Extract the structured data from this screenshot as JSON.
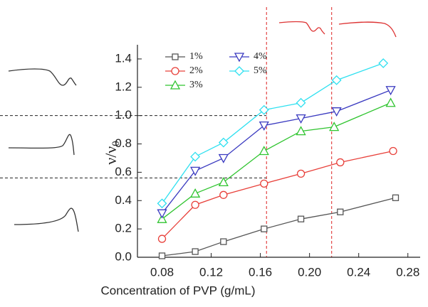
{
  "chart_data": {
    "type": "line",
    "xlabel": "Concentration of PVP (g/mL)",
    "ylabel": "ν/ν",
    "ylabel_sub": "0",
    "xlim": [
      0.06,
      0.29
    ],
    "ylim": [
      0,
      1.5
    ],
    "xticks": [
      0.08,
      0.12,
      0.16,
      {
        "value": 0.2,
        "label": "0.20"
      },
      0.24,
      0.28
    ],
    "yticks": [
      {
        "value": 0,
        "label": "0.0"
      },
      0.2,
      0.4,
      0.6,
      0.8,
      {
        "value": 1,
        "label": "1.0"
      },
      1.2,
      1.4
    ],
    "vlines": [
      0.165,
      0.218
    ],
    "hlines": [
      1.0,
      0.56
    ],
    "series": [
      {
        "name": "1%",
        "color": "#555555",
        "marker": "square",
        "x": [
          0.08,
          0.107,
          0.13,
          0.163,
          0.193,
          0.225,
          0.27
        ],
        "values": [
          0.01,
          0.04,
          0.11,
          0.2,
          0.27,
          0.32,
          0.42
        ]
      },
      {
        "name": "2%",
        "color": "#e8403a",
        "marker": "circle",
        "x": [
          0.08,
          0.107,
          0.13,
          0.163,
          0.193,
          0.225,
          0.268
        ],
        "values": [
          0.13,
          0.37,
          0.44,
          0.52,
          0.59,
          0.67,
          0.75
        ]
      },
      {
        "name": "3%",
        "color": "#2fc42f",
        "marker": "triangle",
        "x": [
          0.08,
          0.107,
          0.13,
          0.163,
          0.193,
          0.22,
          0.266
        ],
        "values": [
          0.27,
          0.45,
          0.53,
          0.75,
          0.89,
          0.92,
          1.09
        ]
      },
      {
        "name": "4%",
        "color": "#3a3ac0",
        "marker": "down-triangle",
        "x": [
          0.08,
          0.107,
          0.13,
          0.163,
          0.193,
          0.222,
          0.266
        ],
        "values": [
          0.31,
          0.61,
          0.7,
          0.93,
          0.98,
          1.03,
          1.18
        ]
      },
      {
        "name": "5%",
        "color": "#2ee0f0",
        "marker": "diamond",
        "x": [
          0.08,
          0.107,
          0.13,
          0.163,
          0.193,
          0.222,
          0.26
        ],
        "values": [
          0.38,
          0.71,
          0.81,
          1.04,
          1.09,
          1.25,
          1.37
        ]
      }
    ]
  }
}
